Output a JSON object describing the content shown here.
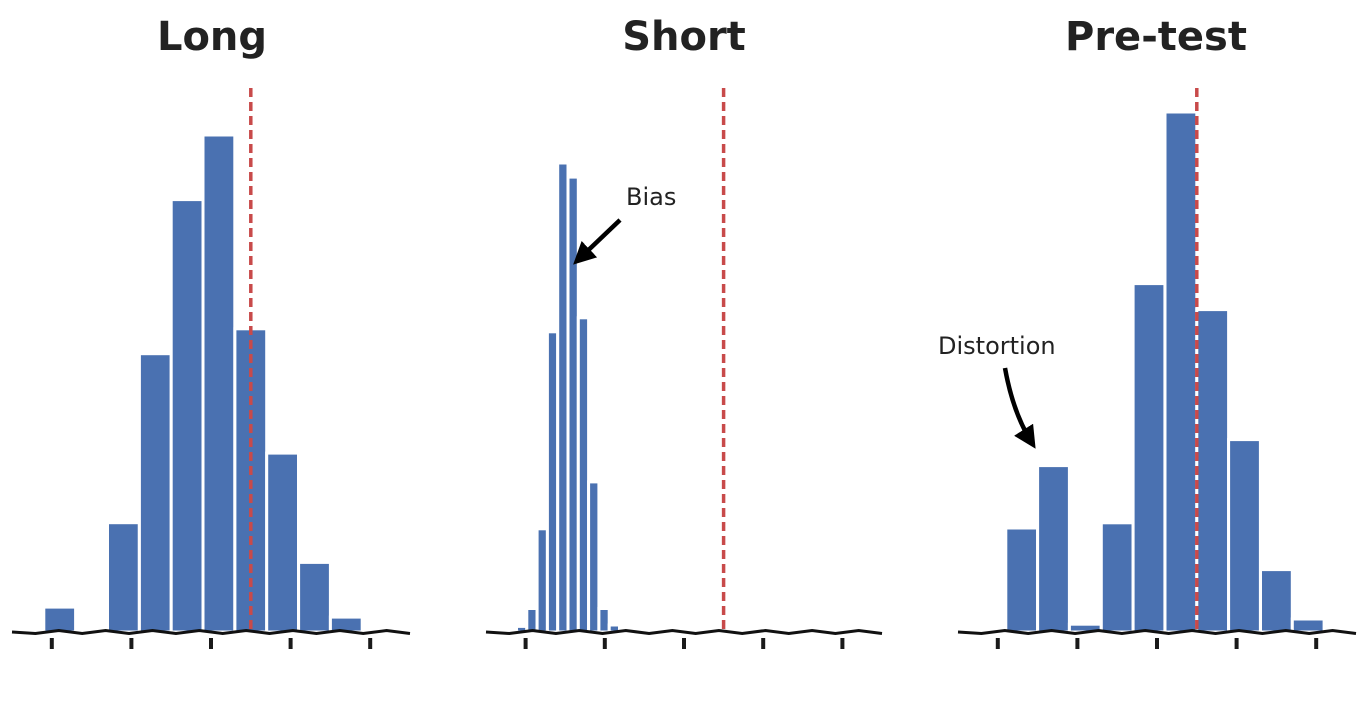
{
  "colors": {
    "bar": "#4a71b1",
    "bar_stroke": "#ffffff",
    "reference_line": "#c84a4a",
    "axis": "#111111",
    "arrow": "#000000"
  },
  "chart_data": [
    {
      "type": "bar",
      "title": "Long",
      "xlim": [
        -4,
        1
      ],
      "ylim": [
        0,
        1
      ],
      "bin_width": 0.4,
      "bin_centers": [
        -3.8,
        -3.4,
        -2.6,
        -2.2,
        -1.8,
        -1.4,
        -1.0,
        -0.6,
        -0.2,
        0.2,
        0.6
      ],
      "values": [
        0.002,
        0.05,
        0.22,
        0.56,
        0.87,
        1.0,
        0.61,
        0.36,
        0.14,
        0.03,
        0.0
      ],
      "reference_x": -1.0,
      "annotations": []
    },
    {
      "type": "bar",
      "title": "Short",
      "xlim": [
        -4,
        1
      ],
      "ylim": [
        0,
        1
      ],
      "bin_width": 0.13,
      "bin_centers": [
        -3.55,
        -3.42,
        -3.29,
        -3.16,
        -3.03,
        -2.9,
        -2.77,
        -2.64,
        -2.51,
        -2.38,
        -2.25
      ],
      "values": [
        0.012,
        0.05,
        0.22,
        0.64,
        1.0,
        0.97,
        0.67,
        0.32,
        0.05,
        0.015,
        0.0
      ],
      "reference_x": -1.0,
      "annotations": [
        {
          "text": "Bias",
          "arrow_to": "bar"
        }
      ]
    },
    {
      "type": "bar",
      "title": "Pre-test",
      "xlim": [
        -4,
        1
      ],
      "ylim": [
        0,
        1
      ],
      "bin_width": 0.4,
      "bin_centers": [
        -3.2,
        -2.8,
        -2.4,
        -2.0,
        -1.6,
        -1.2,
        -0.8,
        -0.4,
        0.0,
        0.4
      ],
      "values": [
        0.2,
        0.32,
        0.015,
        0.21,
        0.67,
        1.0,
        0.62,
        0.37,
        0.12,
        0.025
      ],
      "reference_x": -1.0,
      "annotations": [
        {
          "text": "Distortion",
          "arrow_to": "bar"
        }
      ]
    }
  ]
}
